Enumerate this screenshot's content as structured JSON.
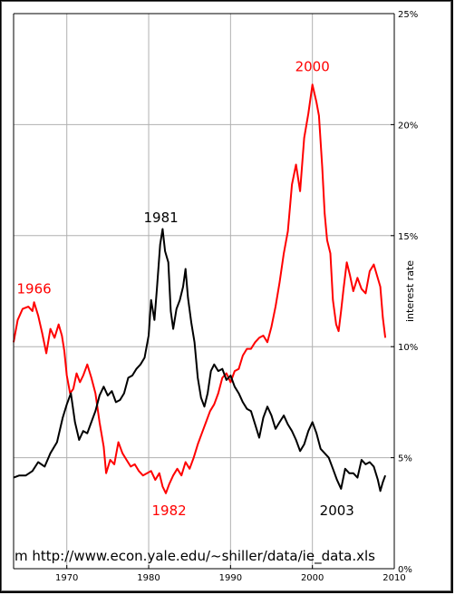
{
  "chart_data": {
    "type": "line",
    "title": "",
    "xlabel": "",
    "ylabel": "interest rate",
    "xlim": [
      1963.5,
      2010
    ],
    "ylim": [
      0,
      25
    ],
    "x_ticks": [
      1970,
      1980,
      1990,
      2000,
      2010
    ],
    "y_ticks": [
      {
        "value": 0,
        "label": "0%"
      },
      {
        "value": 5,
        "label": "5%"
      },
      {
        "value": 10,
        "label": "10%"
      },
      {
        "value": 15,
        "label": "15%"
      },
      {
        "value": 20,
        "label": "20%"
      },
      {
        "value": 25,
        "label": "25%"
      }
    ],
    "y_axis_side": "right",
    "grid": true,
    "source_text": "m http://www.econ.yale.edu/~shiller/data/ie_data.xls",
    "series": [
      {
        "color": "#ff0000",
        "points": [
          [
            1963.5,
            10.2
          ],
          [
            1964.0,
            11.2
          ],
          [
            1964.6,
            11.7
          ],
          [
            1965.3,
            11.8
          ],
          [
            1965.8,
            11.6
          ],
          [
            1966.0,
            12.0
          ],
          [
            1966.5,
            11.4
          ],
          [
            1967.0,
            10.6
          ],
          [
            1967.5,
            9.7
          ],
          [
            1968.0,
            10.8
          ],
          [
            1968.5,
            10.4
          ],
          [
            1969.0,
            11.0
          ],
          [
            1969.4,
            10.5
          ],
          [
            1969.7,
            9.8
          ],
          [
            1970.0,
            8.7
          ],
          [
            1970.4,
            7.9
          ],
          [
            1970.8,
            8.1
          ],
          [
            1971.2,
            8.8
          ],
          [
            1971.6,
            8.4
          ],
          [
            1972.0,
            8.7
          ],
          [
            1972.5,
            9.2
          ],
          [
            1973.0,
            8.6
          ],
          [
            1973.5,
            7.9
          ],
          [
            1974.0,
            6.6
          ],
          [
            1974.5,
            5.5
          ],
          [
            1974.8,
            4.3
          ],
          [
            1975.3,
            4.9
          ],
          [
            1975.8,
            4.7
          ],
          [
            1976.3,
            5.7
          ],
          [
            1976.8,
            5.2
          ],
          [
            1977.3,
            4.9
          ],
          [
            1977.8,
            4.6
          ],
          [
            1978.3,
            4.7
          ],
          [
            1978.8,
            4.4
          ],
          [
            1979.3,
            4.2
          ],
          [
            1979.8,
            4.3
          ],
          [
            1980.3,
            4.4
          ],
          [
            1980.8,
            4.0
          ],
          [
            1981.3,
            4.3
          ],
          [
            1981.7,
            3.7
          ],
          [
            1982.1,
            3.4
          ],
          [
            1982.5,
            3.8
          ],
          [
            1983.0,
            4.2
          ],
          [
            1983.5,
            4.5
          ],
          [
            1984.0,
            4.2
          ],
          [
            1984.5,
            4.8
          ],
          [
            1985.0,
            4.5
          ],
          [
            1985.5,
            5.0
          ],
          [
            1986.0,
            5.6
          ],
          [
            1986.5,
            6.1
          ],
          [
            1987.0,
            6.6
          ],
          [
            1987.5,
            7.1
          ],
          [
            1988.0,
            7.4
          ],
          [
            1988.5,
            7.9
          ],
          [
            1989.0,
            8.6
          ],
          [
            1989.5,
            8.8
          ],
          [
            1990.0,
            8.4
          ],
          [
            1990.5,
            8.9
          ],
          [
            1991.0,
            9.0
          ],
          [
            1991.5,
            9.6
          ],
          [
            1992.0,
            9.9
          ],
          [
            1992.5,
            9.9
          ],
          [
            1993.0,
            10.2
          ],
          [
            1993.5,
            10.4
          ],
          [
            1994.0,
            10.5
          ],
          [
            1994.5,
            10.2
          ],
          [
            1995.0,
            10.9
          ],
          [
            1995.5,
            11.8
          ],
          [
            1996.0,
            12.9
          ],
          [
            1996.5,
            14.2
          ],
          [
            1997.0,
            15.2
          ],
          [
            1997.5,
            17.3
          ],
          [
            1998.0,
            18.2
          ],
          [
            1998.5,
            17.0
          ],
          [
            1999.0,
            19.4
          ],
          [
            1999.5,
            20.5
          ],
          [
            2000.0,
            21.8
          ],
          [
            2000.5,
            21.0
          ],
          [
            2000.8,
            20.4
          ],
          [
            2001.2,
            18.1
          ],
          [
            2001.5,
            16.0
          ],
          [
            2001.8,
            14.8
          ],
          [
            2002.2,
            14.2
          ],
          [
            2002.5,
            12.1
          ],
          [
            2002.9,
            11.0
          ],
          [
            2003.2,
            10.7
          ],
          [
            2003.5,
            11.6
          ],
          [
            2003.8,
            12.6
          ],
          [
            2004.2,
            13.8
          ],
          [
            2004.6,
            13.2
          ],
          [
            2005.0,
            12.5
          ],
          [
            2005.5,
            13.1
          ],
          [
            2006.0,
            12.6
          ],
          [
            2006.5,
            12.4
          ],
          [
            2007.0,
            13.4
          ],
          [
            2007.5,
            13.7
          ],
          [
            2007.9,
            13.2
          ],
          [
            2008.3,
            12.7
          ],
          [
            2008.6,
            11.3
          ],
          [
            2008.9,
            10.4
          ]
        ]
      },
      {
        "color": "#000000",
        "points": [
          [
            1963.5,
            4.1
          ],
          [
            1964.2,
            4.2
          ],
          [
            1965.0,
            4.2
          ],
          [
            1965.8,
            4.4
          ],
          [
            1966.5,
            4.8
          ],
          [
            1967.3,
            4.6
          ],
          [
            1968.0,
            5.2
          ],
          [
            1968.8,
            5.7
          ],
          [
            1969.5,
            6.8
          ],
          [
            1970.0,
            7.4
          ],
          [
            1970.5,
            7.9
          ],
          [
            1971.0,
            6.6
          ],
          [
            1971.5,
            5.8
          ],
          [
            1972.0,
            6.2
          ],
          [
            1972.5,
            6.1
          ],
          [
            1973.0,
            6.6
          ],
          [
            1973.5,
            7.1
          ],
          [
            1974.0,
            7.8
          ],
          [
            1974.5,
            8.2
          ],
          [
            1975.0,
            7.8
          ],
          [
            1975.5,
            8.0
          ],
          [
            1976.0,
            7.5
          ],
          [
            1976.5,
            7.6
          ],
          [
            1977.0,
            7.9
          ],
          [
            1977.5,
            8.6
          ],
          [
            1978.0,
            8.7
          ],
          [
            1978.5,
            9.0
          ],
          [
            1979.0,
            9.2
          ],
          [
            1979.5,
            9.5
          ],
          [
            1980.0,
            10.5
          ],
          [
            1980.3,
            12.1
          ],
          [
            1980.7,
            11.2
          ],
          [
            1981.0,
            12.6
          ],
          [
            1981.4,
            14.6
          ],
          [
            1981.7,
            15.3
          ],
          [
            1982.0,
            14.3
          ],
          [
            1982.4,
            13.8
          ],
          [
            1982.7,
            11.6
          ],
          [
            1983.0,
            10.8
          ],
          [
            1983.4,
            11.7
          ],
          [
            1983.8,
            12.1
          ],
          [
            1984.2,
            12.7
          ],
          [
            1984.5,
            13.5
          ],
          [
            1984.8,
            12.2
          ],
          [
            1985.2,
            11.1
          ],
          [
            1985.6,
            10.2
          ],
          [
            1986.0,
            8.6
          ],
          [
            1986.4,
            7.7
          ],
          [
            1986.8,
            7.3
          ],
          [
            1987.2,
            7.9
          ],
          [
            1987.6,
            8.9
          ],
          [
            1988.0,
            9.2
          ],
          [
            1988.5,
            8.9
          ],
          [
            1989.0,
            9.0
          ],
          [
            1989.5,
            8.5
          ],
          [
            1990.0,
            8.7
          ],
          [
            1990.5,
            8.2
          ],
          [
            1991.0,
            7.9
          ],
          [
            1991.5,
            7.5
          ],
          [
            1992.0,
            7.2
          ],
          [
            1992.5,
            7.1
          ],
          [
            1993.0,
            6.5
          ],
          [
            1993.5,
            5.9
          ],
          [
            1994.0,
            6.8
          ],
          [
            1994.5,
            7.3
          ],
          [
            1995.0,
            6.9
          ],
          [
            1995.5,
            6.3
          ],
          [
            1996.0,
            6.6
          ],
          [
            1996.5,
            6.9
          ],
          [
            1997.0,
            6.5
          ],
          [
            1997.5,
            6.2
          ],
          [
            1998.0,
            5.8
          ],
          [
            1998.5,
            5.3
          ],
          [
            1999.0,
            5.6
          ],
          [
            1999.5,
            6.2
          ],
          [
            2000.0,
            6.6
          ],
          [
            2000.5,
            6.1
          ],
          [
            2001.0,
            5.4
          ],
          [
            2001.5,
            5.2
          ],
          [
            2002.0,
            5.0
          ],
          [
            2002.5,
            4.5
          ],
          [
            2003.0,
            4.0
          ],
          [
            2003.5,
            3.6
          ],
          [
            2004.0,
            4.5
          ],
          [
            2004.5,
            4.3
          ],
          [
            2005.0,
            4.3
          ],
          [
            2005.5,
            4.1
          ],
          [
            2006.0,
            4.9
          ],
          [
            2006.5,
            4.7
          ],
          [
            2007.0,
            4.8
          ],
          [
            2007.5,
            4.6
          ],
          [
            2008.0,
            4.0
          ],
          [
            2008.3,
            3.5
          ],
          [
            2008.6,
            3.9
          ],
          [
            2008.9,
            4.2
          ]
        ]
      }
    ],
    "annotations": [
      {
        "text": "1966",
        "x": 1966.0,
        "y": 12.4,
        "color": "#ff0000"
      },
      {
        "text": "2000",
        "x": 2000.0,
        "y": 22.4,
        "color": "#ff0000"
      },
      {
        "text": "1982",
        "x": 1982.5,
        "y": 2.4,
        "color": "#ff0000"
      },
      {
        "text": "1981",
        "x": 1981.5,
        "y": 15.6,
        "color": "#000000"
      },
      {
        "text": "2003",
        "x": 2003.0,
        "y": 2.4,
        "color": "#000000"
      }
    ]
  }
}
